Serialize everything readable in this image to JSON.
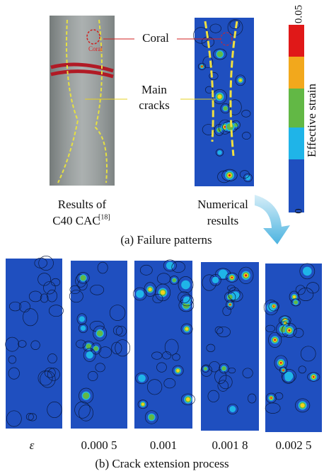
{
  "panel_a": {
    "photo_label": "Coral",
    "annotations": {
      "coral": "Coral",
      "main_cracks": [
        "Main",
        "cracks"
      ]
    },
    "colorbar": {
      "title": "Effective strain",
      "max": "0.05",
      "min": "0"
    },
    "left_caption": [
      "Results of",
      "C40 CAC"
    ],
    "left_ref": "[18]",
    "right_caption": [
      "Numerical",
      "results"
    ],
    "caption": "(a) Failure patterns"
  },
  "panel_b": {
    "strains": [
      "ε",
      "0.000 5",
      "0.001",
      "0.001 8",
      "0.002 5"
    ],
    "caption": "(b) Crack extension process"
  }
}
